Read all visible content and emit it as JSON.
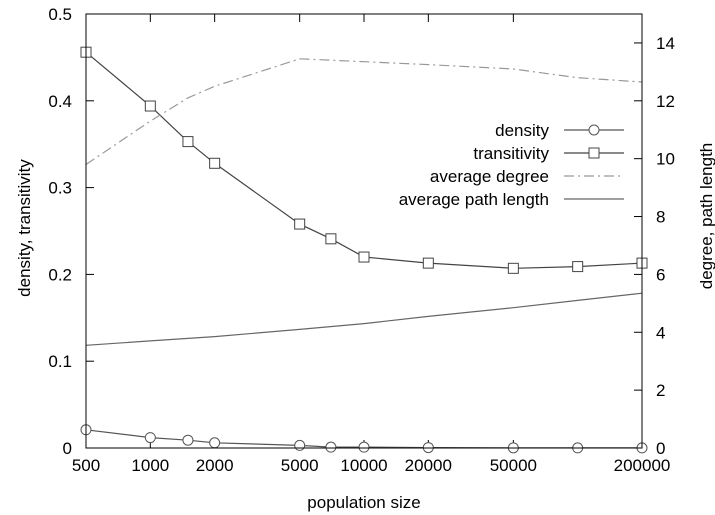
{
  "chart_data": {
    "type": "line",
    "title": "",
    "xlabel": "population size",
    "ylabel_left": "density, transitivity",
    "ylabel_right": "degree, path length",
    "x_scale": "log",
    "xlim": [
      500,
      200000
    ],
    "ylim_left": [
      0,
      0.5
    ],
    "ylim_right": [
      0,
      15
    ],
    "x_ticks": [
      500,
      1000,
      2000,
      5000,
      10000,
      20000,
      50000,
      200000
    ],
    "y_ticks_left": [
      0,
      0.1,
      0.2,
      0.3,
      0.4,
      0.5
    ],
    "y_ticks_right": [
      0,
      2,
      4,
      6,
      8,
      10,
      12,
      14
    ],
    "grid": false,
    "legend_position": "right",
    "series": [
      {
        "name": "density",
        "axis": "left",
        "marker": "circle",
        "style": "solid",
        "color": "#555555",
        "x": [
          500,
          1000,
          1500,
          2000,
          5000,
          7000,
          10000,
          20000,
          50000,
          100000,
          200000
        ],
        "y": [
          0.021,
          0.012,
          0.009,
          0.006,
          0.003,
          0.001,
          0.001,
          0.0005,
          0.0002,
          0.0001,
          0.0001
        ]
      },
      {
        "name": "transitivity",
        "axis": "left",
        "marker": "square",
        "style": "solid",
        "color": "#444444",
        "x": [
          500,
          1000,
          1500,
          2000,
          5000,
          7000,
          10000,
          20000,
          50000,
          100000,
          200000
        ],
        "y": [
          0.456,
          0.394,
          0.353,
          0.328,
          0.258,
          0.241,
          0.22,
          0.213,
          0.207,
          0.209,
          0.213
        ]
      },
      {
        "name": "average degree",
        "axis": "right",
        "marker": "none",
        "style": "dashdot",
        "color": "#999999",
        "x": [
          500,
          1000,
          1500,
          2000,
          5000,
          10000,
          20000,
          50000,
          100000,
          200000
        ],
        "y": [
          9.8,
          11.3,
          12.1,
          12.5,
          13.45,
          13.35,
          13.25,
          13.1,
          12.8,
          12.65
        ]
      },
      {
        "name": "average path length",
        "axis": "right",
        "marker": "none",
        "style": "solid",
        "color": "#666666",
        "x": [
          500,
          1000,
          2000,
          5000,
          10000,
          20000,
          50000,
          100000,
          200000
        ],
        "y": [
          3.55,
          3.7,
          3.85,
          4.1,
          4.3,
          4.55,
          4.85,
          5.1,
          5.35
        ]
      }
    ]
  }
}
